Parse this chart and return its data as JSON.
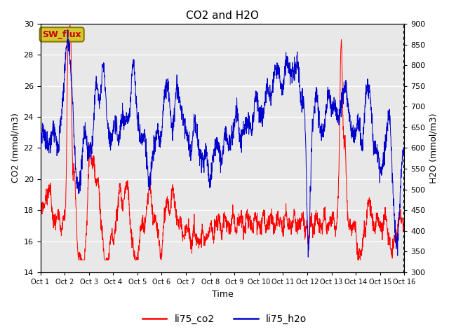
{
  "title": "CO2 and H2O",
  "xlabel": "Time",
  "ylabel_left": "CO2 (mmol/m3)",
  "ylabel_right": "H2O (mmol/m3)",
  "xlim": [
    0,
    15
  ],
  "ylim_left": [
    14,
    30
  ],
  "ylim_right": [
    300,
    900
  ],
  "xtick_labels": [
    "Oct 1",
    "Oct 2",
    "Oct 3",
    "Oct 4",
    "Oct 5",
    "Oct 6",
    "Oct 7",
    "Oct 8",
    "Oct 9",
    "Oct 10",
    "Oct 11",
    "Oct 12",
    "Oct 13",
    "Oct 14",
    "Oct 15",
    "Oct 16"
  ],
  "yticks_left": [
    14,
    16,
    18,
    20,
    22,
    24,
    26,
    28,
    30
  ],
  "yticks_right": [
    300,
    350,
    400,
    450,
    500,
    550,
    600,
    650,
    700,
    750,
    800,
    850,
    900
  ],
  "color_co2": "#FF0000",
  "color_h2o": "#0000CC",
  "label_co2": "li75_co2",
  "label_h2o": "li75_h2o",
  "annotation_text": "SW_flux",
  "bg_color": "#E8E8E8",
  "annotation_facecolor": "#D4C832",
  "annotation_edgecolor": "#8B7500",
  "annotation_textcolor": "#CC0000"
}
